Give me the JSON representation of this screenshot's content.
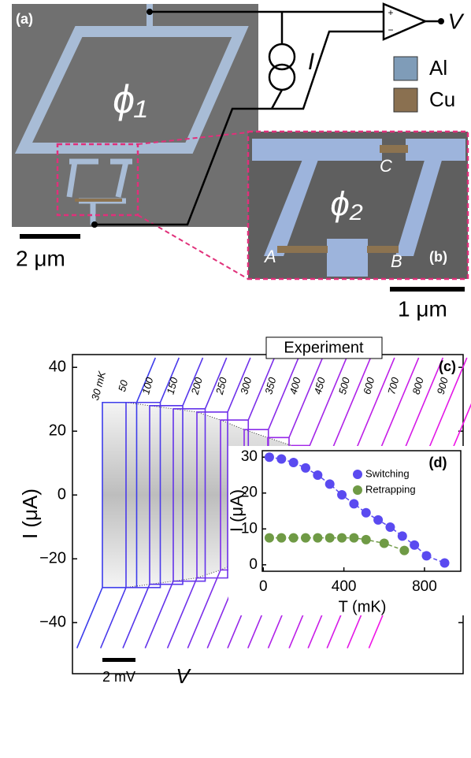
{
  "panels": {
    "a": {
      "label": "(a)",
      "phi": "ϕ₁",
      "scale_bar": "2 μm"
    },
    "circuit": {
      "voltage": "V",
      "plus": "+",
      "minus": "−",
      "current": "I"
    },
    "legend": {
      "al": "Al",
      "cu": "Cu"
    },
    "b": {
      "label": "(b)",
      "phi": "ϕ₂",
      "junctions": [
        "A",
        "B",
        "C"
      ],
      "scale_bar": "1 μm"
    }
  },
  "chart_data": [
    {
      "type": "iv",
      "label": "(c)",
      "title": "Experiment",
      "ylabel": "I (μA)",
      "xlabel": "V",
      "scale_bar": "2 mV",
      "categories": [
        "30 mK",
        "50",
        "100",
        "150",
        "200",
        "250",
        "300",
        "350",
        "400",
        "450",
        "500",
        "600",
        "700",
        "800",
        "900"
      ],
      "values": [
        29,
        29,
        28,
        27,
        26,
        23.5,
        20.5,
        18,
        15.5,
        13,
        11,
        7.5,
        4,
        1.5,
        0
      ],
      "colors": [
        "#3c3ceb",
        "#4939eb",
        "#5636eb",
        "#6333ea",
        "#6f31ea",
        "#7c2ee9",
        "#892be9",
        "#9628e8",
        "#a325e8",
        "#b022e8",
        "#bd1fe7",
        "#c91de7",
        "#d61ae7",
        "#e317e6",
        "#f014e6"
      ],
      "ylim": [
        -56,
        44
      ],
      "yticks": [
        {
          "value": -40,
          "label": "−40"
        },
        {
          "value": -20,
          "label": "−20"
        },
        0,
        20,
        40
      ]
    },
    {
      "type": "scatter",
      "label": "(d)",
      "xlabel": "T (mK)",
      "ylabel": "I (μA)",
      "xlim": [
        -5,
        980
      ],
      "xticks": [
        0,
        400,
        800
      ],
      "ylim": [
        -1.8,
        31.8
      ],
      "yticks": [
        0,
        10,
        20,
        30
      ],
      "series": [
        {
          "name": "Switching",
          "color": "#5a4af0",
          "x": [
            30,
            90,
            150,
            210,
            270,
            330,
            390,
            450,
            510,
            570,
            630,
            690,
            750,
            810,
            900
          ],
          "values": [
            30,
            29.5,
            28.5,
            27,
            25,
            22.5,
            19.5,
            17,
            14.5,
            12.5,
            10.5,
            8,
            5.5,
            2.5,
            0.5
          ]
        },
        {
          "name": "Retrapping",
          "color": "#6f9a45",
          "x": [
            30,
            90,
            150,
            210,
            270,
            330,
            390,
            450,
            510,
            600,
            700
          ],
          "values": [
            7.5,
            7.5,
            7.5,
            7.5,
            7.5,
            7.5,
            7.5,
            7.5,
            7,
            6,
            4
          ]
        }
      ]
    }
  ]
}
